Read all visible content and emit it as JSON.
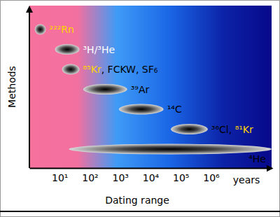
{
  "chart_data": {
    "type": "range",
    "xlabel": "Dating range",
    "ylabel": "Methods",
    "annotations": [
      "years"
    ],
    "log": "x",
    "tick_labels": "x",
    "xlim": [
      1,
      100000000
    ],
    "xticks": [
      {
        "value": 10,
        "label": "10¹"
      },
      {
        "value": 100,
        "label": "10²"
      },
      {
        "value": 1000,
        "label": "10³"
      },
      {
        "value": 10000,
        "label": "10⁴"
      },
      {
        "value": 100000,
        "label": "10⁵"
      },
      {
        "value": 1000000,
        "label": "10⁶"
      }
    ],
    "series": [
      {
        "name": [
          "²²²Rn"
        ],
        "colors": [
          "#ffd400"
        ],
        "values": [
          1.5,
          3.5
        ]
      },
      {
        "name": [
          "³H/³He"
        ],
        "colors": [
          "#ffffff"
        ],
        "values": [
          7,
          45
        ]
      },
      {
        "name": [
          "⁸⁵Kr",
          ", FCKW, SF₆"
        ],
        "colors": [
          "#ffd400",
          "#000000"
        ],
        "values": [
          12,
          45
        ]
      },
      {
        "name": [
          "³⁹Ar"
        ],
        "colors": [
          "#000000"
        ],
        "values": [
          60,
          1700
        ]
      },
      {
        "name": [
          "¹⁴C"
        ],
        "colors": [
          "#000000"
        ],
        "values": [
          900,
          27000
        ]
      },
      {
        "name": [
          "³⁶Cl, ",
          "⁸¹Kr"
        ],
        "colors": [
          "#000000",
          "#ffd400"
        ],
        "values": [
          47000,
          780000
        ]
      },
      {
        "name": [
          "⁴He"
        ],
        "colors": [
          "#000000"
        ],
        "values": [
          20,
          100000000
        ]
      }
    ]
  }
}
